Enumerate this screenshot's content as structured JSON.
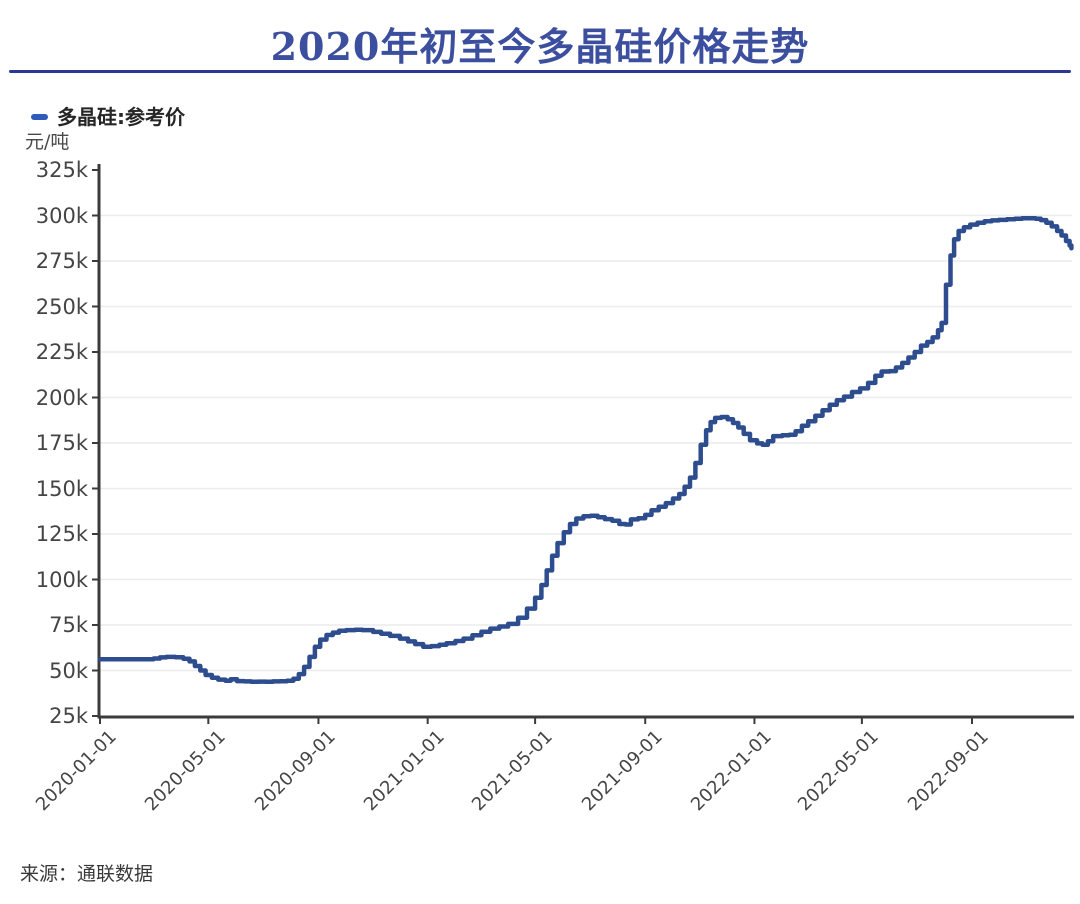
{
  "header": {
    "title": "2020年初至今多晶硅价格走势",
    "title_color": "#3c4f9f",
    "divider_color": "#2b3990"
  },
  "legend": {
    "label": "多晶硅:参考价",
    "marker_color": "#2e5cb8"
  },
  "footer": {
    "source": "来源：通联数据"
  },
  "colors": {
    "line": "#2d4d8f",
    "axis": "#3b3b3b",
    "grid": "#ececec",
    "tick_text": "#454545"
  },
  "chart_data": {
    "type": "line",
    "title": "2020年初至今多晶硅价格走势",
    "series_name": "多晶硅:参考价",
    "unit_label": "元/吨",
    "interpolation": "step-after",
    "grid": true,
    "legend_position": "top-left",
    "ylim_k": [
      25,
      325
    ],
    "y_step_k": 25,
    "y_tick_labels": [
      "325k",
      "300k",
      "275k",
      "250k",
      "225k",
      "200k",
      "175k",
      "150k",
      "125k",
      "100k",
      "75k",
      "50k",
      "25k"
    ],
    "x_tick_labels": [
      "2020-01-01",
      "2020-05-01",
      "2020-09-01",
      "2021-01-01",
      "2021-05-01",
      "2021-09-01",
      "2022-01-01",
      "2022-05-01",
      "2022-09-01"
    ],
    "x_range": [
      "2020-01-01",
      "2022-12-21"
    ],
    "points_unit": "thousand yuan per ton",
    "points": [
      [
        "2020-01-01",
        56.2
      ],
      [
        "2020-01-20",
        56.2
      ],
      [
        "2020-02-08",
        56.2
      ],
      [
        "2020-02-20",
        56.2
      ],
      [
        "2020-03-01",
        56.6
      ],
      [
        "2020-03-08",
        57.2
      ],
      [
        "2020-03-15",
        57.5
      ],
      [
        "2020-03-25",
        57.3
      ],
      [
        "2020-04-03",
        56.5
      ],
      [
        "2020-04-10",
        55.0
      ],
      [
        "2020-04-16",
        52.5
      ],
      [
        "2020-04-22",
        50.0
      ],
      [
        "2020-04-28",
        47.5
      ],
      [
        "2020-05-05",
        46.0
      ],
      [
        "2020-05-12",
        45.0
      ],
      [
        "2020-05-20",
        44.4
      ],
      [
        "2020-05-26",
        45.2
      ],
      [
        "2020-06-02",
        44.2
      ],
      [
        "2020-06-10",
        44.0
      ],
      [
        "2020-06-18",
        43.8
      ],
      [
        "2020-06-26",
        43.9
      ],
      [
        "2020-07-04",
        43.8
      ],
      [
        "2020-07-12",
        44.0
      ],
      [
        "2020-07-20",
        44.1
      ],
      [
        "2020-07-28",
        44.4
      ],
      [
        "2020-08-04",
        45.5
      ],
      [
        "2020-08-10",
        48.0
      ],
      [
        "2020-08-16",
        52.0
      ],
      [
        "2020-08-22",
        57.5
      ],
      [
        "2020-08-28",
        63.0
      ],
      [
        "2020-09-03",
        67.0
      ],
      [
        "2020-09-10",
        69.5
      ],
      [
        "2020-09-17",
        70.8
      ],
      [
        "2020-09-24",
        71.8
      ],
      [
        "2020-10-02",
        72.2
      ],
      [
        "2020-10-12",
        72.4
      ],
      [
        "2020-10-20",
        72.2
      ],
      [
        "2020-11-01",
        71.2
      ],
      [
        "2020-11-10",
        70.2
      ],
      [
        "2020-11-20",
        69.0
      ],
      [
        "2020-12-01",
        67.5
      ],
      [
        "2020-12-10",
        66.0
      ],
      [
        "2020-12-18",
        64.5
      ],
      [
        "2020-12-27",
        63.0
      ],
      [
        "2021-01-05",
        63.4
      ],
      [
        "2021-01-14",
        64.1
      ],
      [
        "2021-01-22",
        65.0
      ],
      [
        "2021-02-01",
        66.2
      ],
      [
        "2021-02-10",
        67.5
      ],
      [
        "2021-02-20",
        69.4
      ],
      [
        "2021-03-02",
        71.3
      ],
      [
        "2021-03-12",
        73.0
      ],
      [
        "2021-03-22",
        74.2
      ],
      [
        "2021-04-01",
        75.6
      ],
      [
        "2021-04-12",
        79.0
      ],
      [
        "2021-04-22",
        84.0
      ],
      [
        "2021-05-01",
        90.0
      ],
      [
        "2021-05-08",
        97.0
      ],
      [
        "2021-05-14",
        105.0
      ],
      [
        "2021-05-20",
        113.0
      ],
      [
        "2021-05-26",
        120.0
      ],
      [
        "2021-06-02",
        126.0
      ],
      [
        "2021-06-09",
        130.5
      ],
      [
        "2021-06-16",
        133.5
      ],
      [
        "2021-06-24",
        134.8
      ],
      [
        "2021-07-02",
        135.0
      ],
      [
        "2021-07-10",
        134.2
      ],
      [
        "2021-07-18",
        133.2
      ],
      [
        "2021-07-26",
        132.3
      ],
      [
        "2021-08-03",
        130.5
      ],
      [
        "2021-08-10",
        130.2
      ],
      [
        "2021-08-16",
        133.0
      ],
      [
        "2021-08-24",
        133.6
      ],
      [
        "2021-09-01",
        135.5
      ],
      [
        "2021-09-08",
        138.0
      ],
      [
        "2021-09-16",
        140.0
      ],
      [
        "2021-09-24",
        142.0
      ],
      [
        "2021-10-02",
        144.5
      ],
      [
        "2021-10-09",
        147.0
      ],
      [
        "2021-10-15",
        151.0
      ],
      [
        "2021-10-21",
        156.0
      ],
      [
        "2021-10-27",
        164.0
      ],
      [
        "2021-11-02",
        174.0
      ],
      [
        "2021-11-08",
        182.0
      ],
      [
        "2021-11-13",
        186.5
      ],
      [
        "2021-11-18",
        188.8
      ],
      [
        "2021-11-25",
        189.3
      ],
      [
        "2021-12-02",
        188.0
      ],
      [
        "2021-12-08",
        186.0
      ],
      [
        "2021-12-14",
        183.5
      ],
      [
        "2021-12-20",
        180.0
      ],
      [
        "2021-12-27",
        176.5
      ],
      [
        "2022-01-04",
        174.8
      ],
      [
        "2022-01-10",
        174.0
      ],
      [
        "2022-01-16",
        176.0
      ],
      [
        "2022-01-22",
        178.8
      ],
      [
        "2022-02-01",
        179.3
      ],
      [
        "2022-02-09",
        179.5
      ],
      [
        "2022-02-16",
        181.5
      ],
      [
        "2022-02-23",
        184.5
      ],
      [
        "2022-03-02",
        187.0
      ],
      [
        "2022-03-10",
        190.0
      ],
      [
        "2022-03-18",
        193.0
      ],
      [
        "2022-03-26",
        196.0
      ],
      [
        "2022-04-03",
        198.5
      ],
      [
        "2022-04-11",
        200.5
      ],
      [
        "2022-04-20",
        203.0
      ],
      [
        "2022-04-29",
        205.0
      ],
      [
        "2022-05-08",
        208.0
      ],
      [
        "2022-05-16",
        212.0
      ],
      [
        "2022-05-23",
        214.3
      ],
      [
        "2022-06-01",
        214.5
      ],
      [
        "2022-06-08",
        216.5
      ],
      [
        "2022-06-15",
        219.0
      ],
      [
        "2022-06-22",
        222.0
      ],
      [
        "2022-06-29",
        225.0
      ],
      [
        "2022-07-06",
        228.5
      ],
      [
        "2022-07-13",
        230.5
      ],
      [
        "2022-07-19",
        233.0
      ],
      [
        "2022-07-25",
        237.0
      ],
      [
        "2022-07-29",
        241.0
      ],
      [
        "2022-08-03",
        262.0
      ],
      [
        "2022-08-08",
        278.0
      ],
      [
        "2022-08-12",
        287.0
      ],
      [
        "2022-08-17",
        291.5
      ],
      [
        "2022-08-23",
        293.5
      ],
      [
        "2022-08-30",
        295.0
      ],
      [
        "2022-09-07",
        296.0
      ],
      [
        "2022-09-15",
        296.8
      ],
      [
        "2022-09-23",
        297.3
      ],
      [
        "2022-10-01",
        297.6
      ],
      [
        "2022-10-10",
        297.9
      ],
      [
        "2022-10-19",
        298.2
      ],
      [
        "2022-10-27",
        298.5
      ],
      [
        "2022-11-04",
        298.5
      ],
      [
        "2022-11-11",
        298.2
      ],
      [
        "2022-11-17",
        297.5
      ],
      [
        "2022-11-23",
        296.0
      ],
      [
        "2022-11-29",
        294.0
      ],
      [
        "2022-12-05",
        291.5
      ],
      [
        "2022-12-10",
        289.0
      ],
      [
        "2022-12-15",
        286.0
      ],
      [
        "2022-12-19",
        283.5
      ],
      [
        "2022-12-21",
        282.0
      ]
    ]
  }
}
